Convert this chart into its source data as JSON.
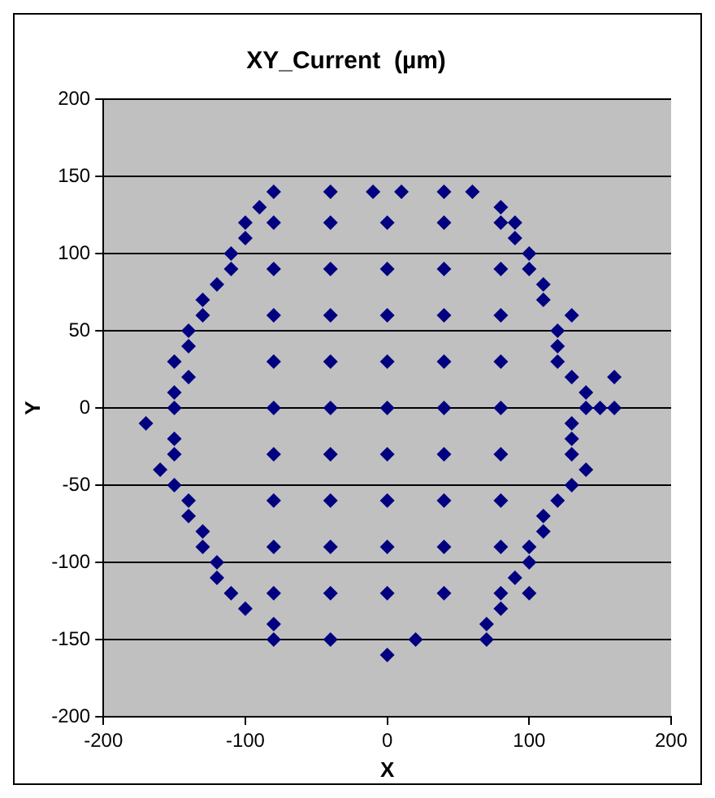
{
  "chart_data": {
    "type": "scatter",
    "title": "XY_Current  (µm)",
    "xlabel": "X",
    "ylabel": "Y",
    "x": [
      -80,
      -40,
      -10,
      10,
      40,
      60,
      -90,
      80,
      -100,
      -80,
      -40,
      0,
      40,
      80,
      90,
      -100,
      90,
      -110,
      100,
      -110,
      -80,
      -40,
      0,
      40,
      80,
      100,
      -120,
      110,
      -130,
      110,
      -130,
      -80,
      -40,
      0,
      40,
      80,
      130,
      -140,
      120,
      -140,
      120,
      -150,
      -80,
      -40,
      0,
      40,
      80,
      120,
      -140,
      130,
      160,
      -150,
      140,
      -150,
      -80,
      -40,
      0,
      40,
      80,
      140,
      150,
      160,
      -170,
      130,
      -150,
      130,
      -150,
      -80,
      -40,
      0,
      40,
      80,
      130,
      -160,
      140,
      -150,
      130,
      -140,
      -80,
      -40,
      0,
      40,
      80,
      120,
      -140,
      110,
      -130,
      110,
      -130,
      -80,
      -40,
      0,
      40,
      80,
      100,
      -120,
      100,
      -120,
      90,
      -110,
      -80,
      -40,
      0,
      40,
      80,
      100,
      -100,
      80,
      -80,
      70,
      -80,
      -40,
      20,
      70,
      0
    ],
    "values": [
      140,
      140,
      140,
      140,
      140,
      140,
      130,
      130,
      120,
      120,
      120,
      120,
      120,
      120,
      120,
      110,
      110,
      100,
      100,
      90,
      90,
      90,
      90,
      90,
      90,
      90,
      80,
      80,
      70,
      70,
      60,
      60,
      60,
      60,
      60,
      60,
      60,
      50,
      50,
      40,
      40,
      30,
      30,
      30,
      30,
      30,
      30,
      30,
      20,
      20,
      20,
      10,
      10,
      0,
      0,
      0,
      0,
      0,
      0,
      0,
      0,
      0,
      -10,
      -10,
      -20,
      -20,
      -30,
      -30,
      -30,
      -30,
      -30,
      -30,
      -30,
      -40,
      -40,
      -50,
      -50,
      -60,
      -60,
      -60,
      -60,
      -60,
      -60,
      -60,
      -70,
      -70,
      -80,
      -80,
      -90,
      -90,
      -90,
      -90,
      -90,
      -90,
      -90,
      -100,
      -100,
      -110,
      -110,
      -120,
      -120,
      -120,
      -120,
      -120,
      -120,
      -120,
      -130,
      -130,
      -140,
      -140,
      -150,
      -150,
      -150,
      -150,
      -160
    ],
    "color": "#000080",
    "marker": "diamond",
    "xlim": [
      -200,
      200
    ],
    "xticks": [
      -200,
      -100,
      0,
      100,
      200
    ],
    "ylim": [
      -200,
      200
    ],
    "yticks": [
      -200,
      -150,
      -100,
      -50,
      0,
      50,
      100,
      150,
      200
    ],
    "grid": "y",
    "legend": false
  }
}
